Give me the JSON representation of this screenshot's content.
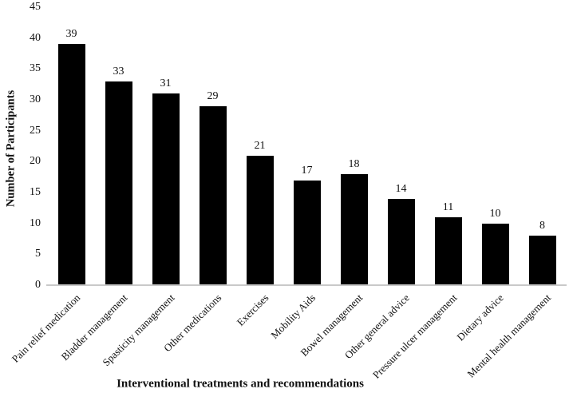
{
  "figure": {
    "background_color": "#ffffff",
    "text_color": "#111111"
  },
  "chart_data": {
    "type": "bar",
    "title": "",
    "xlabel": "Interventional treatments and recommendations",
    "ylabel": "Number of Participants",
    "categories": [
      "Pain relief medication",
      "Bladder management",
      "Spasticity management",
      "Other medications",
      "Exercises",
      "Mobility Aids",
      "Bowel management",
      "Other general advice",
      "Pressure ulcer management",
      "Dietary advice",
      "Mental health management"
    ],
    "values": [
      39,
      33,
      31,
      29,
      21,
      17,
      18,
      14,
      11,
      10,
      8
    ],
    "yticks": [
      0,
      5,
      10,
      15,
      20,
      25,
      30,
      35,
      40,
      45
    ],
    "ylim": [
      0,
      45
    ],
    "bar_color": "#000000",
    "axis_line_color": "#c9c9c9",
    "grid": false,
    "legend": false,
    "value_labels_shown": true,
    "x_tick_rotation_deg": 45
  }
}
